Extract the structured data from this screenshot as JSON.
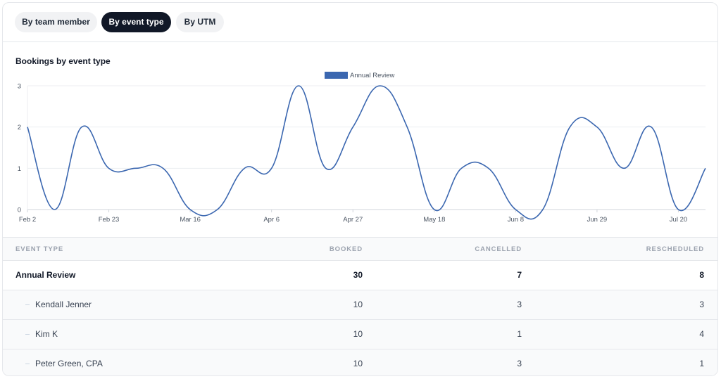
{
  "tabs": [
    {
      "label": "By team member",
      "active": false
    },
    {
      "label": "By event type",
      "active": true
    },
    {
      "label": "By UTM",
      "active": false
    }
  ],
  "chart_data": {
    "type": "line",
    "title": "Bookings by event type",
    "legend": {
      "position": "top-center",
      "entries": [
        "Annual Review"
      ]
    },
    "ylim": [
      0,
      3
    ],
    "yticks": [
      0,
      1,
      2,
      3
    ],
    "grid": true,
    "x_tick_labels": [
      "Feb 2",
      "Feb 23",
      "Mar 16",
      "Apr 6",
      "Apr 27",
      "May 18",
      "Jun 8",
      "Jun 29",
      "Jul 20"
    ],
    "series": [
      {
        "name": "Annual Review",
        "color": "#3b67b0",
        "values": [
          2,
          0,
          2,
          1,
          1,
          1,
          0,
          0,
          1,
          1,
          3,
          1,
          2,
          3,
          2,
          0,
          1,
          1,
          0,
          0,
          2,
          2,
          1,
          2,
          0,
          1
        ]
      }
    ]
  },
  "table": {
    "headers": {
      "event_type": "EVENT TYPE",
      "booked": "BOOKED",
      "cancelled": "CANCELLED",
      "rescheduled": "RESCHEDULED"
    },
    "parent": {
      "name": "Annual Review",
      "booked": "30",
      "cancelled": "7",
      "rescheduled": "8"
    },
    "children": [
      {
        "name": "Kendall Jenner",
        "booked": "10",
        "cancelled": "3",
        "rescheduled": "3"
      },
      {
        "name": "Kim K",
        "booked": "10",
        "cancelled": "1",
        "rescheduled": "4"
      },
      {
        "name": "Peter Green, CPA",
        "booked": "10",
        "cancelled": "3",
        "rescheduled": "1"
      }
    ]
  }
}
